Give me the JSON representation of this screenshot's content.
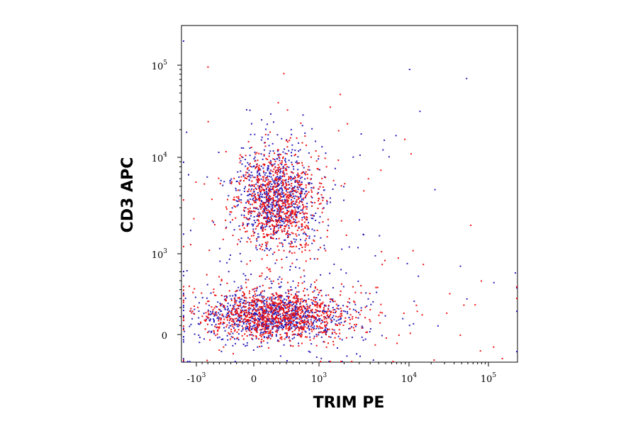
{
  "chart_data": {
    "type": "scatter",
    "xlabel": "TRIM PE",
    "ylabel": "CD3 APC",
    "x_scale": "biexponential",
    "y_scale": "biexponential",
    "x_ticks": [
      {
        "value": -1000,
        "base": "-10",
        "exp": "3"
      },
      {
        "value": 0,
        "base": "0",
        "exp": ""
      },
      {
        "value": 1000,
        "base": "10",
        "exp": "3"
      },
      {
        "value": 10000,
        "base": "10",
        "exp": "4"
      },
      {
        "value": 100000,
        "base": "10",
        "exp": "5"
      }
    ],
    "y_ticks": [
      {
        "value": 0,
        "base": "0",
        "exp": ""
      },
      {
        "value": 1000,
        "base": "10",
        "exp": "3"
      },
      {
        "value": 10000,
        "base": "10",
        "exp": "4"
      },
      {
        "value": 100000,
        "base": "10",
        "exp": "5"
      }
    ],
    "series": [
      {
        "color": "#2a1fb8",
        "populations": [
          {
            "x_center": 300,
            "y_center": 4000,
            "share": 0.45
          },
          {
            "x_center": 300,
            "y_center": 250,
            "share": 0.55
          }
        ]
      },
      {
        "color": "#ee1111",
        "populations": [
          {
            "x_center": 350,
            "y_center": 3500,
            "share": 0.45
          },
          {
            "x_center": 350,
            "y_center": 250,
            "share": 0.55
          }
        ]
      }
    ],
    "grid": false,
    "legend": "none"
  }
}
